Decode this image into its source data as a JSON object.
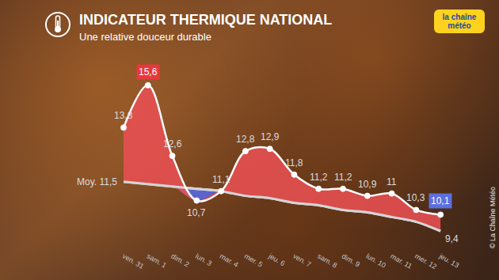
{
  "chart_data": {
    "type": "line",
    "title": "INDICATEUR THERMIQUE NATIONAL",
    "subtitle": "Une relative douceur durable",
    "logo": "la chaîne météo",
    "source": "© La Chaîne Météo",
    "categories": [
      "ven. 31",
      "sam. 1",
      "dim. 2",
      "lun. 3",
      "mar. 4",
      "mer. 5",
      "jeu. 6",
      "ven. 7",
      "sam. 8",
      "dim. 9",
      "lun. 10",
      "mar. 11",
      "mer. 12",
      "jeu. 13"
    ],
    "series": [
      {
        "color": "#ffffff",
        "values": [
          13.8,
          15.6,
          12.6,
          10.7,
          11.1,
          12.8,
          12.9,
          11.8,
          11.2,
          11.2,
          10.9,
          11,
          10.3,
          10.1
        ],
        "value_labels": [
          "13,8",
          "15,6",
          "12,6",
          "10,7",
          "11,1",
          "12,8",
          "12,9",
          "11,8",
          "11,2",
          "11,2",
          "10,9",
          "11",
          "10,3",
          "10,1"
        ]
      },
      {
        "color": "#d4d4d4",
        "values": [
          11.5,
          11.4,
          11.3,
          11.2,
          11.1,
          10.9,
          10.8,
          10.6,
          10.5,
          10.3,
          10.2,
          10.0,
          9.8,
          9.4
        ],
        "value_labels": [
          "Moy. 11,5",
          null,
          null,
          null,
          null,
          null,
          null,
          null,
          null,
          null,
          null,
          null,
          null,
          "9,4"
        ]
      }
    ],
    "ylim": [
      8.6,
      16.2
    ],
    "grid": false,
    "tick_labels": "x",
    "data_labels": true
  }
}
